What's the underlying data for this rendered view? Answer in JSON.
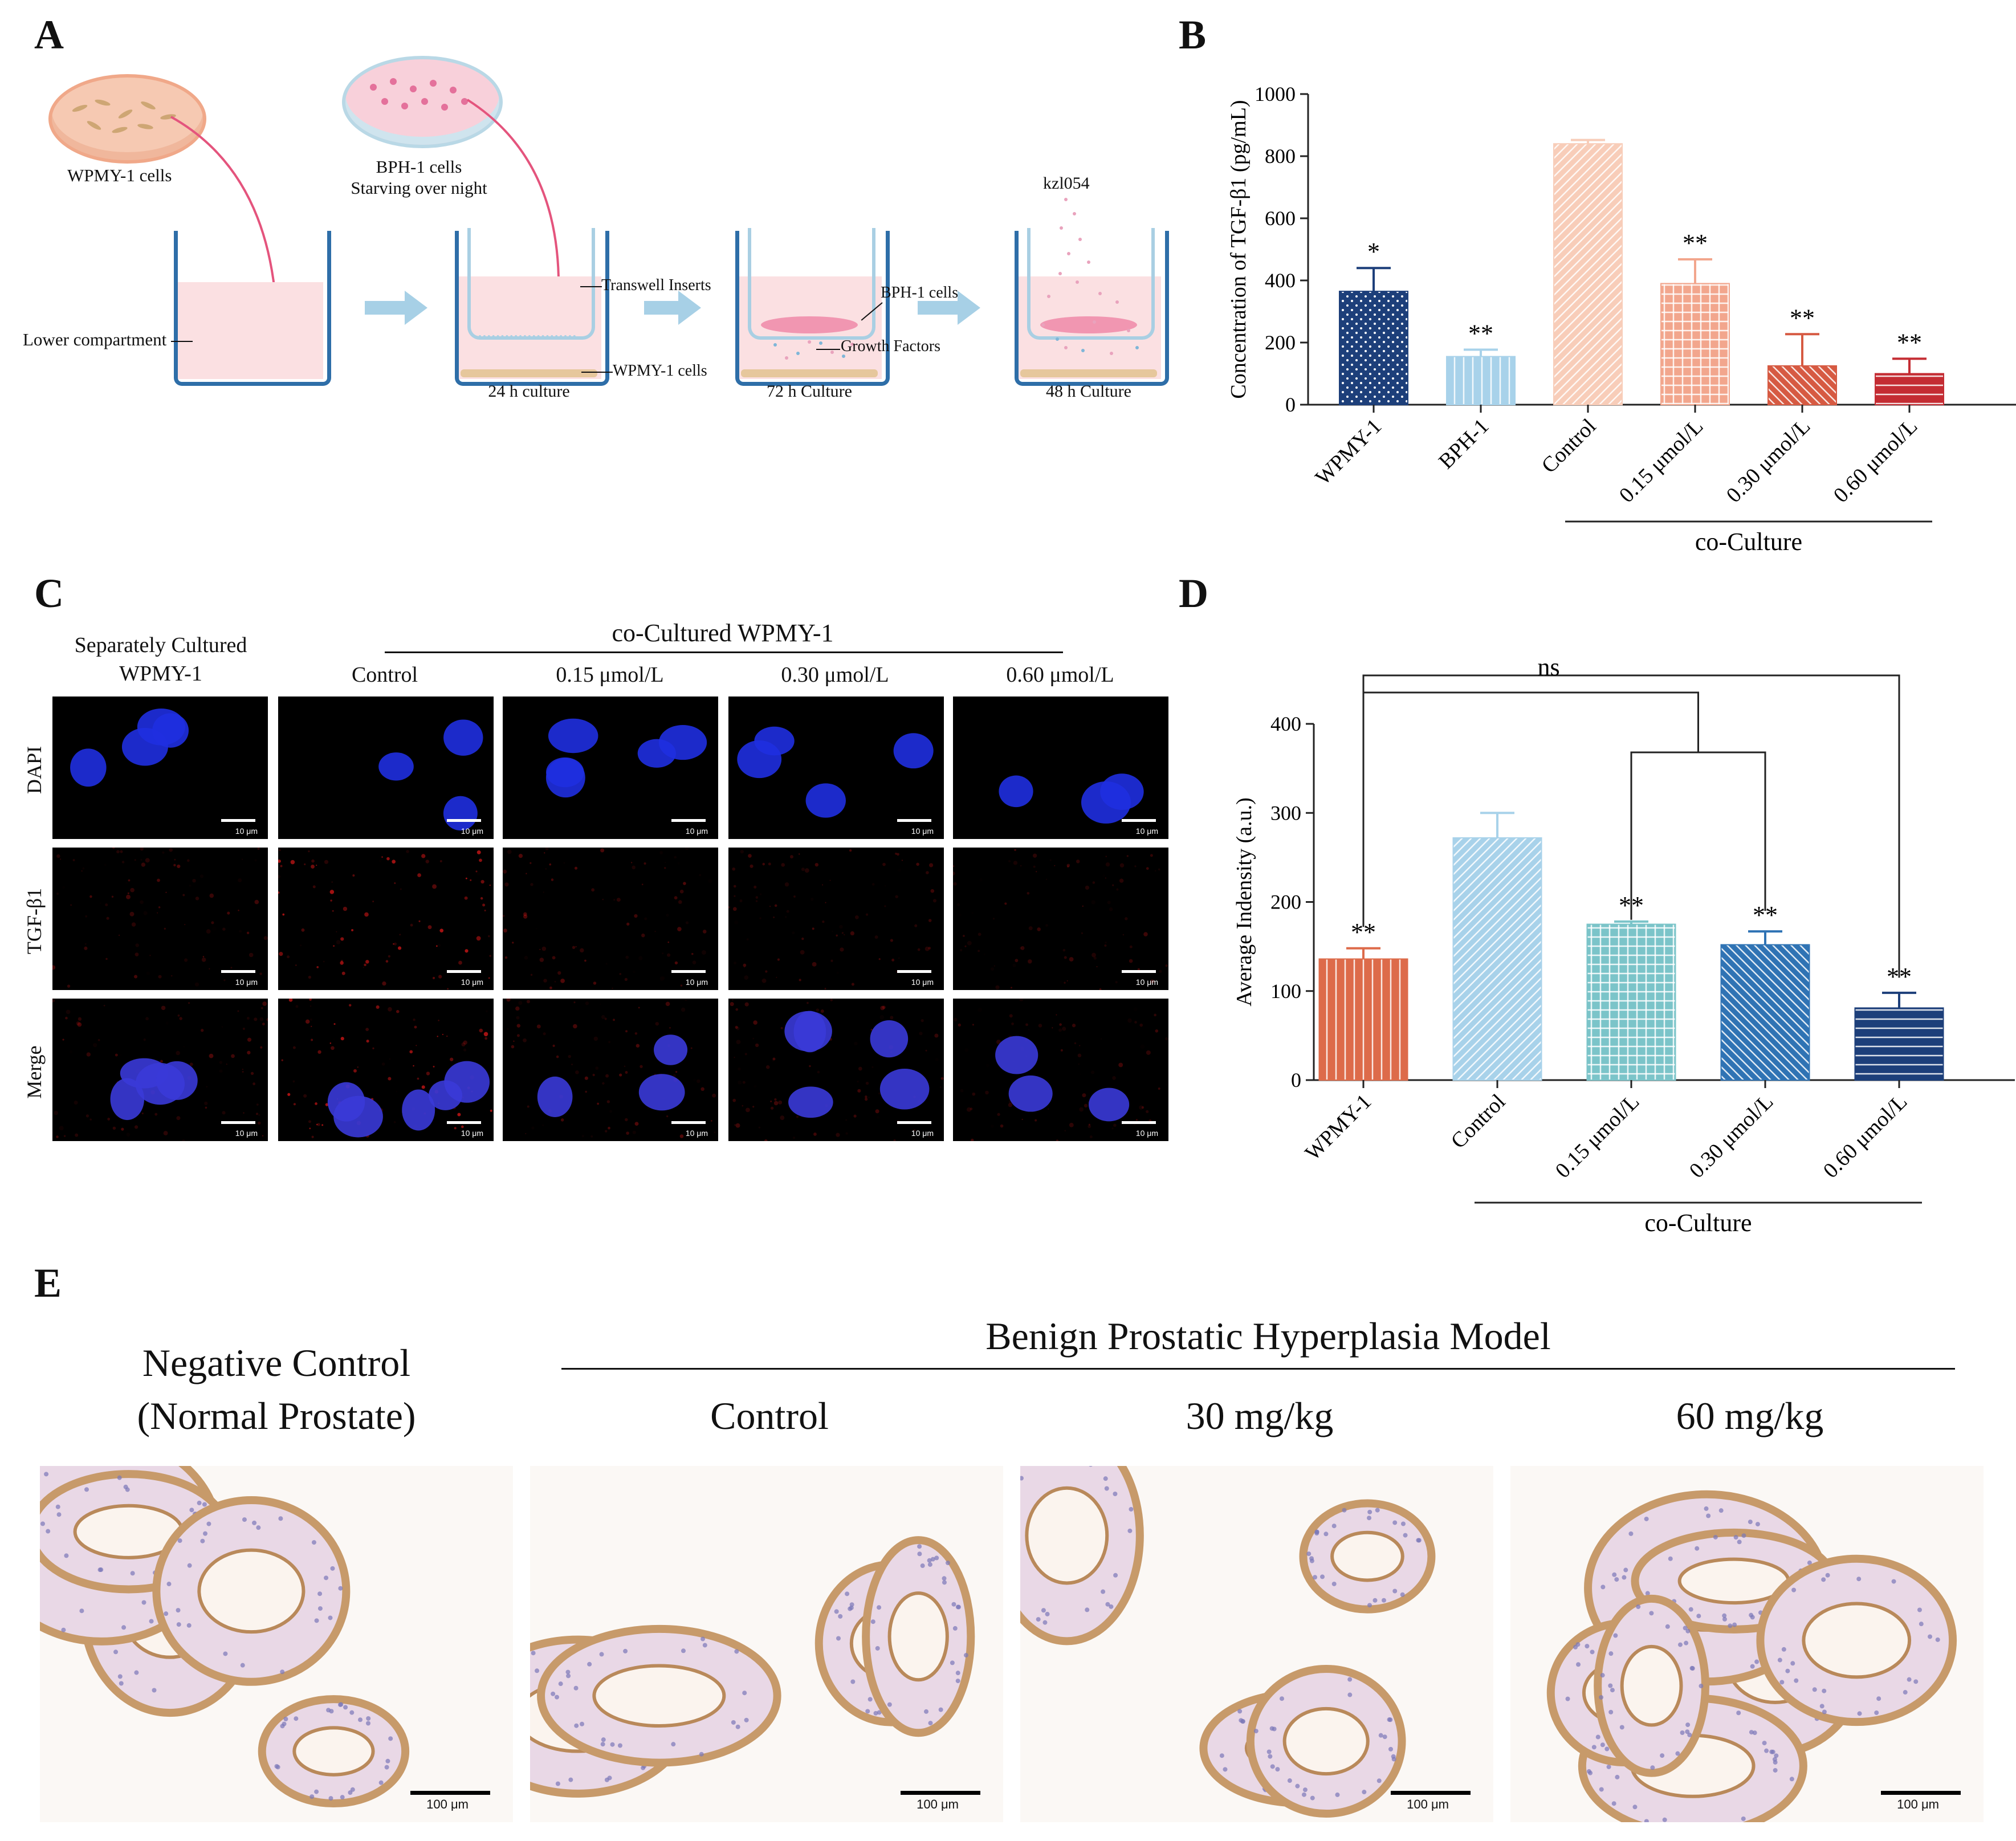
{
  "panels": {
    "a": "A",
    "b": "B",
    "c": "C",
    "d": "D",
    "e": "E"
  },
  "panelA": {
    "wpmy_dish_label": "WPMY-1 cells",
    "bph_dish_label_1": "BPH-1 cells",
    "bph_dish_label_2": "Starving over night",
    "lower_compartment": "Lower compartment",
    "transwell_inserts": "Transwell Inserts",
    "wpmy_cells_label": "WPMY-1 cells",
    "culture_24h": "24 h culture",
    "bph_cells_label": "BPH-1 cells",
    "growth_factors": "Growth Factors",
    "culture_72h": "72 h Culture",
    "drug_label": "kzl054",
    "culture_48h": "48 h Culture",
    "colors": {
      "well": "#2e6ea8",
      "medium": "#fbe0e2",
      "insert": "#a9cfe3",
      "arrow": "#e4547d",
      "flow_arrow": "#a7d0e6"
    }
  },
  "panelC": {
    "col_separate_1": "Separately Cultured",
    "col_separate_2": "WPMY-1",
    "group_title": "co-Cultured WPMY-1",
    "columns": [
      "Control",
      "0.15 μmol/L",
      "0.30 μmol/L",
      "0.60 μmol/L"
    ],
    "rows": [
      "DAPI",
      "TGF-β1",
      "Merge"
    ],
    "scale_label": "10 μm"
  },
  "panelE": {
    "neg_1": "Negative Control",
    "neg_2": "(Normal Prostate)",
    "group_title": "Benign Prostatic Hyperplasia Model",
    "columns": [
      "Control",
      "30 mg/kg",
      "60 mg/kg"
    ],
    "scale_label": "100 μm"
  },
  "chart_data": [
    {
      "type": "bar",
      "ylabel": "Concentration of TGF-β1 (pg/mL)",
      "ylim": [
        0,
        1000
      ],
      "yticks": [
        0,
        200,
        400,
        600,
        800,
        1000
      ],
      "categories": [
        "WPMY-1",
        "BPH-1",
        "Control",
        "0.15 μmol/L",
        "0.30 μmol/L",
        "0.60 μmol/L"
      ],
      "values": [
        365,
        155,
        840,
        390,
        125,
        100
      ],
      "errors": [
        75,
        22,
        12,
        78,
        102,
        48
      ],
      "significance": [
        "*",
        "**",
        "",
        "**",
        "**",
        "**"
      ],
      "group_label": "co-Culture",
      "colors": [
        "#1d3f7a",
        "#a8d2ea",
        "#f8cdb9",
        "#f2a68d",
        "#d65a42",
        "#c42c33"
      ]
    },
    {
      "type": "bar",
      "ylabel": "Average Indensity (a.u.)",
      "ylim": [
        0,
        400
      ],
      "yticks": [
        0,
        100,
        200,
        300,
        400
      ],
      "categories": [
        "WPMY-1",
        "Control",
        "0.15 μmol/L",
        "0.30 μmol/L",
        "0.60 μmol/L"
      ],
      "values": [
        136,
        272,
        175,
        152,
        81
      ],
      "errors": [
        12,
        28,
        3,
        15,
        17
      ],
      "significance": [
        "**",
        "",
        "**",
        "**",
        "**"
      ],
      "bracket_label": "ns",
      "group_label": "co-Culture",
      "colors": [
        "#dd6b4a",
        "#a8d2ea",
        "#7bc4c9",
        "#2f73b4",
        "#1d3f7a"
      ]
    }
  ]
}
